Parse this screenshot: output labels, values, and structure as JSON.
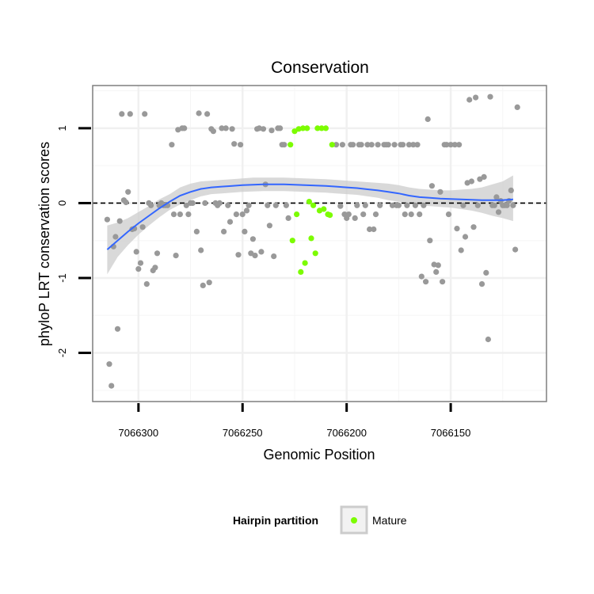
{
  "chart_data": {
    "type": "scatter",
    "title": "Conservation",
    "xlabel": "Genomic Position",
    "ylabel": "phyloP LRT conservation scores",
    "x_reversed": true,
    "xlim": [
      7066322,
      7066104
    ],
    "ylim": [
      -2.65,
      1.57
    ],
    "x_ticks": [
      7066300,
      7066250,
      7066200,
      7066150
    ],
    "x_tick_labels": [
      "7066300",
      "7066250",
      "7066200",
      "7066150"
    ],
    "y_ticks": [
      -2,
      -1,
      0,
      1
    ],
    "y_tick_labels": [
      "-2",
      "-1",
      "0",
      "1"
    ],
    "grid": true,
    "reference_line": {
      "y": 0,
      "style": "dashed"
    },
    "legend": {
      "title": "Hairpin partition",
      "position": "bottom",
      "entries": [
        {
          "label": "Mature",
          "color": "#7cfc00"
        }
      ]
    },
    "colors": {
      "other": "#999999",
      "mature": "#7cfc00",
      "smooth": "#3366ff",
      "band": "#cccccc"
    },
    "series": [
      {
        "name": "",
        "color": "#999999",
        "points": [
          [
            7066315,
            -0.22
          ],
          [
            7066314,
            -2.15
          ],
          [
            7066313,
            -2.44
          ],
          [
            7066312,
            -0.58
          ],
          [
            7066311,
            -0.45
          ],
          [
            7066310,
            -1.68
          ],
          [
            7066309,
            -0.24
          ],
          [
            7066308,
            1.19
          ],
          [
            7066307,
            0.04
          ],
          [
            7066306,
            0.01
          ],
          [
            7066305,
            0.15
          ],
          [
            7066304,
            1.19
          ],
          [
            7066303,
            -0.35
          ],
          [
            7066302,
            -0.34
          ],
          [
            7066301,
            -0.65
          ],
          [
            7066300,
            -0.88
          ],
          [
            7066299,
            -0.8
          ],
          [
            7066298,
            -0.32
          ],
          [
            7066297,
            1.19
          ],
          [
            7066296,
            -1.08
          ],
          [
            7066295,
            0.0
          ],
          [
            7066294,
            -0.03
          ],
          [
            7066293,
            -0.9
          ],
          [
            7066292,
            -0.86
          ],
          [
            7066291,
            -0.67
          ],
          [
            7066290,
            -0.03
          ],
          [
            7066289,
            0.0
          ],
          [
            7066288,
            -0.03
          ],
          [
            7066287,
            -0.03
          ],
          [
            7066286,
            -0.03
          ],
          [
            7066284,
            0.78
          ],
          [
            7066283,
            -0.15
          ],
          [
            7066282,
            -0.7
          ],
          [
            7066281,
            0.98
          ],
          [
            7066280,
            -0.15
          ],
          [
            7066279,
            1.0
          ],
          [
            7066278,
            1.0
          ],
          [
            7066277,
            -0.03
          ],
          [
            7066276,
            -0.15
          ],
          [
            7066275,
            0.0
          ],
          [
            7066274,
            0.0
          ],
          [
            7066272,
            -0.38
          ],
          [
            7066271,
            1.2
          ],
          [
            7066270,
            -0.63
          ],
          [
            7066269,
            -1.1
          ],
          [
            7066268,
            0.0
          ],
          [
            7066267,
            1.19
          ],
          [
            7066266,
            -1.06
          ],
          [
            7066265,
            0.99
          ],
          [
            7066264,
            0.96
          ],
          [
            7066263,
            0.0
          ],
          [
            7066262,
            -0.03
          ],
          [
            7066261,
            0.0
          ],
          [
            7066260,
            1.0
          ],
          [
            7066259,
            -0.38
          ],
          [
            7066258,
            1.0
          ],
          [
            7066257,
            -0.03
          ],
          [
            7066256,
            -0.25
          ],
          [
            7066255,
            0.99
          ],
          [
            7066254,
            0.79
          ],
          [
            7066253,
            -0.15
          ],
          [
            7066252,
            -0.69
          ],
          [
            7066251,
            0.78
          ],
          [
            7066250,
            -0.15
          ],
          [
            7066249,
            -0.38
          ],
          [
            7066248,
            -0.1
          ],
          [
            7066247,
            -0.03
          ],
          [
            7066246,
            -0.67
          ],
          [
            7066245,
            -0.48
          ],
          [
            7066244,
            -0.7
          ],
          [
            7066243,
            0.99
          ],
          [
            7066242,
            1.0
          ],
          [
            7066241,
            -0.65
          ],
          [
            7066240,
            0.99
          ],
          [
            7066239,
            0.25
          ],
          [
            7066238,
            -0.03
          ],
          [
            7066237,
            -0.3
          ],
          [
            7066236,
            0.97
          ],
          [
            7066235,
            -0.71
          ],
          [
            7066234,
            -0.03
          ],
          [
            7066233,
            1.0
          ],
          [
            7066232,
            1.0
          ],
          [
            7066231,
            0.78
          ],
          [
            7066230,
            0.78
          ],
          [
            7066229,
            -0.03
          ],
          [
            7066228,
            -0.2
          ],
          [
            7066205,
            0.78
          ],
          [
            7066203,
            -0.04
          ],
          [
            7066202,
            0.78
          ],
          [
            7066201,
            -0.15
          ],
          [
            7066200,
            -0.2
          ],
          [
            7066199,
            -0.15
          ],
          [
            7066198,
            0.78
          ],
          [
            7066197,
            0.78
          ],
          [
            7066196,
            -0.2
          ],
          [
            7066195,
            -0.03
          ],
          [
            7066194,
            0.78
          ],
          [
            7066193,
            0.78
          ],
          [
            7066192,
            -0.15
          ],
          [
            7066191,
            -0.03
          ],
          [
            7066190,
            0.78
          ],
          [
            7066189,
            -0.35
          ],
          [
            7066188,
            0.78
          ],
          [
            7066187,
            -0.35
          ],
          [
            7066186,
            -0.15
          ],
          [
            7066185,
            0.78
          ],
          [
            7066184,
            -0.03
          ],
          [
            7066182,
            0.78
          ],
          [
            7066181,
            0.78
          ],
          [
            7066180,
            0.78
          ],
          [
            7066178,
            -0.03
          ],
          [
            7066177,
            0.78
          ],
          [
            7066176,
            -0.03
          ],
          [
            7066175,
            -0.03
          ],
          [
            7066174,
            0.78
          ],
          [
            7066173,
            0.78
          ],
          [
            7066172,
            -0.15
          ],
          [
            7066171,
            -0.03
          ],
          [
            7066170,
            0.78
          ],
          [
            7066169,
            -0.15
          ],
          [
            7066168,
            0.78
          ],
          [
            7066167,
            -0.03
          ],
          [
            7066166,
            0.78
          ],
          [
            7066165,
            -0.15
          ],
          [
            7066164,
            -0.98
          ],
          [
            7066163,
            -0.03
          ],
          [
            7066162,
            -1.05
          ],
          [
            7066161,
            1.12
          ],
          [
            7066160,
            -0.5
          ],
          [
            7066159,
            0.23
          ],
          [
            7066158,
            -0.82
          ],
          [
            7066157,
            -0.92
          ],
          [
            7066156,
            -0.83
          ],
          [
            7066155,
            0.15
          ],
          [
            7066154,
            -1.05
          ],
          [
            7066153,
            0.78
          ],
          [
            7066152,
            0.78
          ],
          [
            7066151,
            -0.15
          ],
          [
            7066150,
            0.78
          ],
          [
            7066148,
            0.78
          ],
          [
            7066147,
            -0.34
          ],
          [
            7066146,
            0.78
          ],
          [
            7066145,
            -0.63
          ],
          [
            7066144,
            -0.03
          ],
          [
            7066143,
            -0.45
          ],
          [
            7066142,
            0.27
          ],
          [
            7066141,
            1.38
          ],
          [
            7066140,
            0.29
          ],
          [
            7066139,
            -0.32
          ],
          [
            7066138,
            1.41
          ],
          [
            7066137,
            -0.03
          ],
          [
            7066136,
            0.32
          ],
          [
            7066135,
            -1.08
          ],
          [
            7066134,
            0.35
          ],
          [
            7066133,
            -0.93
          ],
          [
            7066132,
            -1.82
          ],
          [
            7066131,
            1.42
          ],
          [
            7066130,
            -0.03
          ],
          [
            7066129,
            -0.03
          ],
          [
            7066128,
            0.08
          ],
          [
            7066127,
            -0.12
          ],
          [
            7066126,
            0.03
          ],
          [
            7066125,
            -0.03
          ],
          [
            7066124,
            -0.03
          ],
          [
            7066123,
            -0.03
          ],
          [
            7066122,
            0.03
          ],
          [
            7066121,
            0.17
          ],
          [
            7066120,
            -0.03
          ],
          [
            7066119,
            -0.62
          ],
          [
            7066118,
            1.28
          ]
        ]
      },
      {
        "name": "Mature",
        "color": "#7cfc00",
        "points": [
          [
            7066227,
            0.78
          ],
          [
            7066226,
            -0.5
          ],
          [
            7066225,
            0.96
          ],
          [
            7066224,
            -0.15
          ],
          [
            7066223,
            0.99
          ],
          [
            7066222,
            -0.92
          ],
          [
            7066221,
            1.0
          ],
          [
            7066220,
            -0.8
          ],
          [
            7066219,
            1.0
          ],
          [
            7066218,
            0.02
          ],
          [
            7066217,
            -0.47
          ],
          [
            7066216,
            -0.03
          ],
          [
            7066215,
            -0.67
          ],
          [
            7066214,
            1.0
          ],
          [
            7066213,
            -0.1
          ],
          [
            7066212,
            1.0
          ],
          [
            7066211,
            -0.08
          ],
          [
            7066210,
            1.0
          ],
          [
            7066209,
            -0.15
          ],
          [
            7066208,
            -0.16
          ],
          [
            7066207,
            0.78
          ]
        ]
      }
    ],
    "smooth": {
      "x": [
        7066315,
        7066310,
        7066305,
        7066300,
        7066295,
        7066290,
        7066285,
        7066280,
        7066275,
        7066270,
        7066265,
        7066260,
        7066255,
        7066250,
        7066245,
        7066240,
        7066235,
        7066230,
        7066225,
        7066220,
        7066215,
        7066210,
        7066205,
        7066200,
        7066195,
        7066190,
        7066185,
        7066180,
        7066175,
        7066170,
        7066165,
        7066160,
        7066155,
        7066150,
        7066145,
        7066140,
        7066135,
        7066130,
        7066125,
        7066120
      ],
      "y": [
        -0.62,
        -0.5,
        -0.38,
        -0.27,
        -0.17,
        -0.07,
        0.02,
        0.1,
        0.15,
        0.19,
        0.21,
        0.22,
        0.23,
        0.24,
        0.245,
        0.25,
        0.25,
        0.25,
        0.245,
        0.24,
        0.235,
        0.23,
        0.22,
        0.21,
        0.2,
        0.185,
        0.17,
        0.15,
        0.13,
        0.1,
        0.08,
        0.07,
        0.06,
        0.055,
        0.05,
        0.045,
        0.04,
        0.04,
        0.04,
        0.05
      ],
      "lower": [
        -0.95,
        -0.72,
        -0.56,
        -0.42,
        -0.3,
        -0.19,
        -0.09,
        -0.02,
        0.04,
        0.09,
        0.12,
        0.13,
        0.14,
        0.15,
        0.155,
        0.16,
        0.16,
        0.16,
        0.155,
        0.15,
        0.145,
        0.14,
        0.13,
        0.12,
        0.11,
        0.09,
        0.07,
        0.04,
        0.02,
        -0.01,
        -0.03,
        -0.04,
        -0.05,
        -0.06,
        -0.08,
        -0.1,
        -0.13,
        -0.17,
        -0.2,
        -0.24
      ],
      "upper": [
        -0.3,
        -0.26,
        -0.2,
        -0.12,
        -0.04,
        0.05,
        0.12,
        0.21,
        0.26,
        0.29,
        0.3,
        0.31,
        0.32,
        0.33,
        0.34,
        0.34,
        0.34,
        0.34,
        0.335,
        0.33,
        0.325,
        0.32,
        0.31,
        0.3,
        0.29,
        0.28,
        0.27,
        0.26,
        0.24,
        0.21,
        0.19,
        0.18,
        0.17,
        0.17,
        0.18,
        0.19,
        0.21,
        0.25,
        0.29,
        0.37
      ]
    }
  }
}
